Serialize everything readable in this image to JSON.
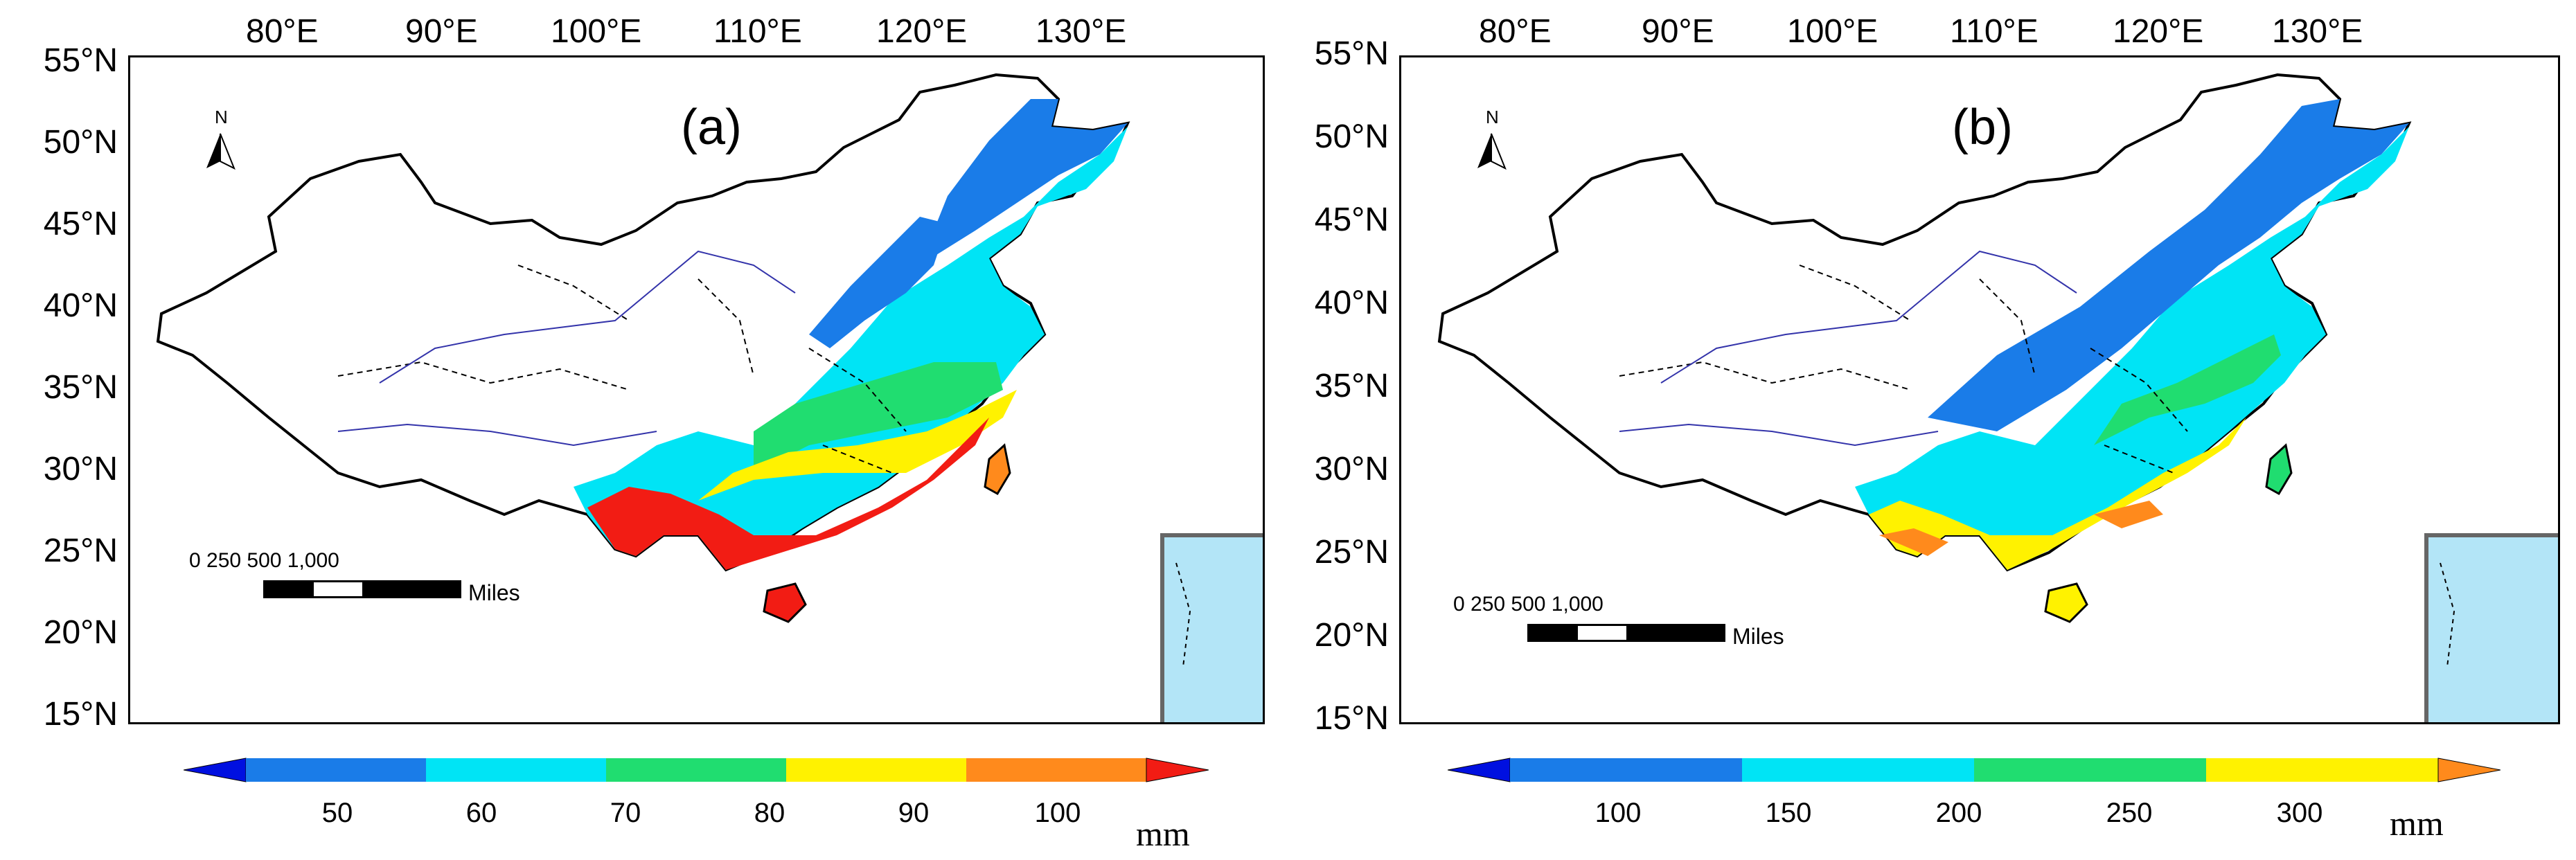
{
  "lon_labels": [
    "80°E",
    "90°E",
    "100°E",
    "110°E",
    "120°E",
    "130°E"
  ],
  "lat_labels": [
    "55°N",
    "50°N",
    "45°N",
    "40°N",
    "35°N",
    "30°N",
    "25°N",
    "20°N",
    "15°N"
  ],
  "north_label": "N",
  "scale": {
    "numbers": "0   250 500          1,000",
    "unit": "Miles"
  },
  "unit_label": "mm",
  "panels": [
    {
      "id": "a",
      "title": "(a)",
      "colorbar_ticks": [
        "50",
        "60",
        "70",
        "80",
        "90",
        "100"
      ],
      "colorbar_colors": [
        "#0010e0",
        "#1a7ce8",
        "#00e4f5",
        "#20dd70",
        "#fff200",
        "#ff8a1c",
        "#f21c14"
      ]
    },
    {
      "id": "b",
      "title": "(b)",
      "colorbar_ticks": [
        "100",
        "150",
        "200",
        "250",
        "300"
      ],
      "colorbar_colors": [
        "#0010e0",
        "#1a7ce8",
        "#00e4f5",
        "#20dd70",
        "#fff200",
        "#ff8a1c"
      ]
    }
  ]
}
